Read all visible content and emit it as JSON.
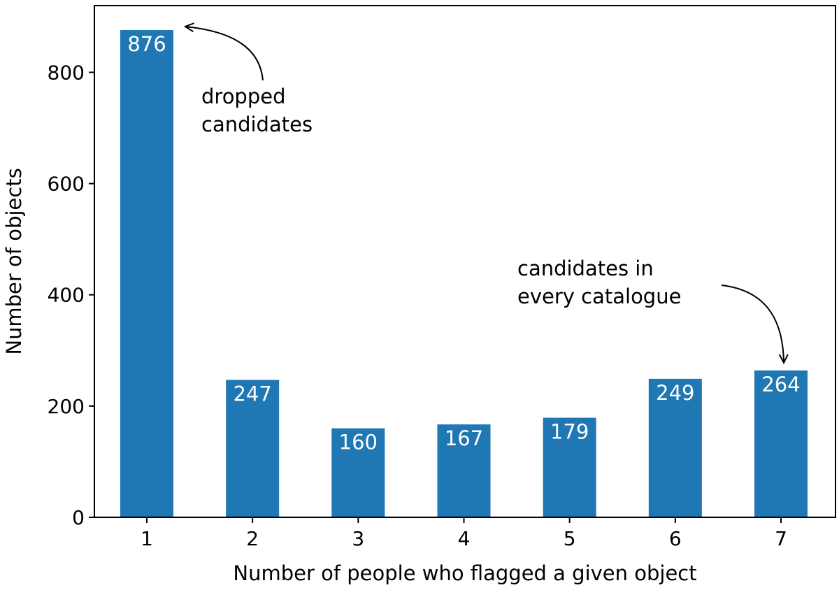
{
  "chart_data": {
    "type": "bar",
    "categories": [
      "1",
      "2",
      "3",
      "4",
      "5",
      "6",
      "7"
    ],
    "values": [
      876,
      247,
      160,
      167,
      179,
      249,
      264
    ],
    "data_labels": [
      "876",
      "247",
      "160",
      "167",
      "179",
      "249",
      "264"
    ],
    "xlabel": "Number of people who flagged a given object",
    "ylabel": "Number of objects",
    "ylim": [
      0,
      920
    ],
    "yticks": [
      0,
      200,
      400,
      600,
      800
    ],
    "ytick_labels": [
      "0",
      "200",
      "400",
      "600",
      "800"
    ],
    "bar_color": "#1f77b4",
    "grid": false,
    "annotations": [
      {
        "lines": [
          "dropped",
          "candidates"
        ],
        "target_category": "1"
      },
      {
        "lines": [
          "candidates in",
          "every catalogue"
        ],
        "target_category": "7"
      }
    ]
  }
}
